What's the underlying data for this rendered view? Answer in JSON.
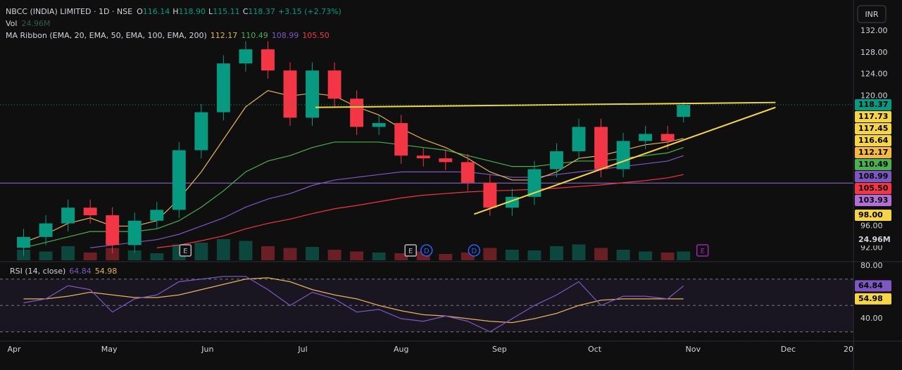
{
  "chart_data": {
    "type": "candlestick",
    "title": "NBCC (INDIA) LIMITED · 1D · NSE",
    "currency": "INR",
    "ohlc": [
      {
        "key": "O",
        "value": 116.14,
        "label": "116.14"
      },
      {
        "key": "H",
        "value": 118.9,
        "label": "118.90"
      },
      {
        "key": "L",
        "value": 115.11,
        "label": "115.11"
      },
      {
        "key": "C",
        "value": 118.37,
        "label": "118.37"
      }
    ],
    "change": "+3.15 (+2.73%)",
    "volume_title": "Vol",
    "volume_last": {
      "value": 24.96,
      "label": "24.96M"
    },
    "ma_title": "MA Ribbon (EMA, 20, EMA, 50, EMA, 100, EMA, 200)",
    "up_color": "#089981",
    "down_color": "#f23645",
    "x": [
      3,
      10,
      17,
      24,
      31,
      38,
      45,
      52,
      59,
      66,
      73,
      80,
      87,
      94,
      101,
      108,
      115,
      122,
      129,
      136,
      143,
      150,
      157,
      164,
      171,
      178,
      185,
      192,
      199,
      206,
      211
    ],
    "open": [
      92,
      94,
      96.5,
      99.4,
      98,
      92.5,
      97,
      99,
      110,
      117,
      126,
      128.6,
      124.7,
      116,
      124.7,
      119.5,
      114.3,
      115,
      109,
      108.5,
      107.8,
      104,
      99.4,
      101.4,
      106.5,
      109.8,
      114.3,
      106.5,
      111.7,
      113,
      116.14
    ],
    "high": [
      95.5,
      98,
      100.9,
      100.9,
      99.5,
      98.5,
      100.5,
      111.5,
      118.5,
      127.5,
      130.1,
      130.1,
      126.2,
      126.2,
      126.2,
      121,
      116.5,
      116.5,
      110.5,
      110,
      109.3,
      105.5,
      102.9,
      108,
      111.3,
      115.8,
      115.8,
      113.2,
      114.5,
      114.5,
      118.9
    ],
    "low": [
      90.5,
      92.5,
      95,
      96.5,
      91,
      91,
      95.5,
      97.5,
      108.5,
      115.5,
      124.5,
      123.2,
      114.5,
      114.5,
      118,
      112.8,
      112.8,
      107.5,
      107,
      106.3,
      102.5,
      97.9,
      97.9,
      99.9,
      105,
      108.3,
      105,
      105,
      110.2,
      110.2,
      115.11
    ],
    "close": [
      94,
      96.5,
      99.4,
      98,
      92.5,
      97,
      99,
      110,
      117,
      126,
      128.6,
      124.7,
      116,
      124.7,
      119.5,
      114.3,
      115,
      109,
      108.5,
      107.8,
      104,
      99.4,
      101.4,
      106.5,
      109.8,
      114.3,
      106.5,
      111.7,
      113,
      111.7,
      118.37
    ],
    "volume": [
      30,
      25,
      40,
      22,
      35,
      28,
      20,
      45,
      50,
      60,
      55,
      40,
      35,
      38,
      30,
      25,
      22,
      20,
      25,
      18,
      22,
      35,
      30,
      28,
      40,
      45,
      35,
      30,
      25,
      22,
      24.96
    ],
    "emas": [
      {
        "color": "#e5b35a",
        "value": 112.17,
        "label": "112.17",
        "values": [
          93,
          94.5,
          96.5,
          97.5,
          96,
          96,
          97,
          101,
          106,
          112,
          118,
          121,
          120,
          120.5,
          120,
          118,
          116.5,
          114,
          112,
          110.5,
          108.5,
          106,
          104.5,
          104.5,
          106,
          108.5,
          109,
          110,
          111,
          111.5,
          112.17
        ]
      },
      {
        "color": "#4caf50",
        "value": 110.49,
        "label": "110.49",
        "values": [
          92,
          93,
          94,
          95,
          95,
          95,
          95.5,
          97,
          99.5,
          102.5,
          106,
          108,
          109,
          110.5,
          111.5,
          111.5,
          111.5,
          111,
          110.5,
          110,
          109,
          108,
          107,
          107,
          107.5,
          108,
          108,
          108.5,
          109,
          109.5,
          110.49
        ]
      },
      {
        "color": "#7e57c2",
        "value": 108.99,
        "label": "108.99",
        "values": [
          null,
          null,
          null,
          92,
          92.5,
          93,
          93.5,
          94.5,
          96,
          97.5,
          99.5,
          101,
          102,
          103.5,
          104.5,
          105,
          105.5,
          106,
          106,
          106,
          106,
          105.5,
          105,
          105,
          105.5,
          106,
          106.5,
          107,
          107.5,
          108,
          108.99
        ]
      },
      {
        "color": "#f23645",
        "value": 105.5,
        "label": "105.50",
        "values": [
          null,
          null,
          null,
          null,
          null,
          null,
          92,
          92.5,
          93.3,
          94.2,
          95.5,
          96.5,
          97.3,
          98.3,
          99.2,
          99.8,
          100.5,
          101.2,
          101.7,
          102,
          102.3,
          102.5,
          102.6,
          102.8,
          103,
          103.3,
          103.6,
          104,
          104.4,
          104.9,
          105.5
        ]
      }
    ],
    "xlim": [
      0,
      263
    ],
    "ylim": [
      89.7,
      137.7
    ],
    "xticks": [
      {
        "value": 0,
        "label": "Apr"
      },
      {
        "value": 30,
        "label": "May"
      },
      {
        "value": 61,
        "label": "Jun"
      },
      {
        "value": 91,
        "label": "Jul"
      },
      {
        "value": 122,
        "label": "Aug"
      },
      {
        "value": 153,
        "label": "Sep"
      },
      {
        "value": 183,
        "label": "Oct"
      },
      {
        "value": 214,
        "label": "Nov"
      },
      {
        "value": 244,
        "label": "Dec"
      },
      {
        "value": 263,
        "label": "20"
      }
    ],
    "yticks": [
      {
        "value": 132,
        "label": "132.00"
      },
      {
        "value": 128,
        "label": "128.00"
      },
      {
        "value": 124,
        "label": "124.00"
      },
      {
        "value": 120,
        "label": "120.00"
      },
      {
        "value": 96,
        "label": "96.00"
      },
      {
        "value": 92,
        "label": "92.00"
      }
    ],
    "horizontal_line": {
      "value": 103.93,
      "color": "#9c6ade"
    },
    "trendlines": [
      {
        "color": "#f5d547",
        "points": [
          {
            "x": 95,
            "y": 117.9
          },
          {
            "x": 240,
            "y": 118.8
          }
        ]
      },
      {
        "color": "#f5d547",
        "points": [
          {
            "x": 145,
            "y": 98.2
          },
          {
            "x": 240,
            "y": 117.9
          }
        ]
      }
    ],
    "badges": [
      {
        "value": 118.37,
        "label": "118.37",
        "color": "#089981"
      },
      {
        "value": 117.73,
        "label": "117.73",
        "color": "#f5d547"
      },
      {
        "value": 117.45,
        "label": "117.45",
        "color": "#f5d547"
      },
      {
        "value": 116.64,
        "label": "116.64",
        "color": "#f5d547"
      },
      {
        "value": 112.17,
        "label": "112.17",
        "color": "#f5b942"
      },
      {
        "value": 110.49,
        "label": "110.49",
        "color": "#4caf50"
      },
      {
        "value": 108.99,
        "label": "108.99",
        "color": "#7e57c2"
      },
      {
        "value": 105.5,
        "label": "105.50",
        "color": "#f23645"
      },
      {
        "value": 103.93,
        "label": "103.93",
        "color": "#b26fd6"
      },
      {
        "value": 98,
        "label": "98.00",
        "color": "#f5d547"
      }
    ],
    "events": [
      {
        "x": 54,
        "label": "E",
        "color": "#b2b5be"
      },
      {
        "x": 125,
        "label": "E",
        "color": "#b2b5be"
      },
      {
        "x": 130,
        "label": "D",
        "color": "#2962ff"
      },
      {
        "x": 145,
        "label": "D",
        "color": "#2962ff"
      },
      {
        "x": 217,
        "label": "E",
        "color": "#9c27b0"
      }
    ],
    "rsi": {
      "title": "RSI (14, close)",
      "color": "#7e57c2",
      "ma_color": "#e5b35a",
      "values": [
        52,
        55,
        65,
        62,
        45,
        55,
        58,
        68,
        70,
        72,
        72,
        62,
        50,
        60,
        55,
        45,
        47,
        40,
        38,
        42,
        38,
        30,
        40,
        50,
        58,
        68,
        50,
        57,
        57,
        55,
        64.84
      ],
      "ma_values": [
        55,
        55,
        57,
        60,
        58,
        56,
        56,
        58,
        62,
        66,
        70,
        71,
        68,
        62,
        58,
        55,
        50,
        46,
        43,
        42,
        40,
        38,
        37,
        40,
        44,
        50,
        54,
        55,
        55,
        55,
        54.98
      ],
      "last": {
        "value": 64.84,
        "label": "64.84"
      },
      "ma_last": {
        "value": 54.98,
        "label": "54.98"
      },
      "ylim": [
        22.93,
        83.2
      ],
      "yticks": [
        {
          "value": 80,
          "label": "80.00"
        },
        {
          "value": 40,
          "label": "40.00"
        }
      ],
      "levels": [
        70,
        50,
        30
      ]
    }
  }
}
